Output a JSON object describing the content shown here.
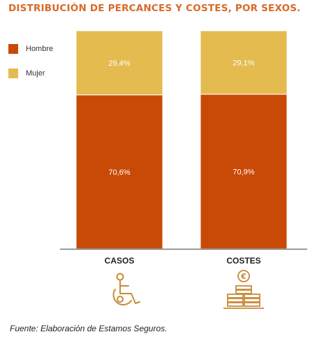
{
  "chart_data": {
    "type": "bar",
    "stacked": true,
    "title": "DISTRIBUCIÓN DE PERCANCES Y COSTES, POR SEXOS.",
    "categories": [
      "CASOS",
      "COSTES"
    ],
    "series": [
      {
        "name": "Hombre",
        "values": [
          70.6,
          70.9
        ],
        "labels": [
          "70,6%",
          "70,9%"
        ],
        "color": "#c94a06"
      },
      {
        "name": "Mujer",
        "values": [
          29.4,
          29.1
        ],
        "labels": [
          "29,4%",
          "29,1%"
        ],
        "color": "#e3bb4f"
      }
    ],
    "ylim": [
      0,
      100
    ],
    "legend_position": "top-left",
    "icons": [
      "wheelchair-icon",
      "coins-icon"
    ],
    "coin_symbol": "€"
  },
  "source": "Fuente: Elaboración de Estamos Seguros."
}
